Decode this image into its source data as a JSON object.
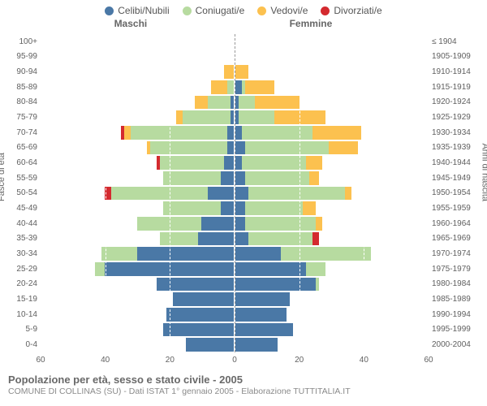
{
  "legend": {
    "items": [
      {
        "key": "celibi",
        "label": "Celibi/Nubili",
        "color": "#4a78a6"
      },
      {
        "key": "coniugati",
        "label": "Coniugati/e",
        "color": "#b7dba0"
      },
      {
        "key": "vedovi",
        "label": "Vedovi/e",
        "color": "#fcc14f"
      },
      {
        "key": "divorz",
        "label": "Divorziati/e",
        "color": "#d42a2f"
      }
    ]
  },
  "titles": {
    "male": "Maschi",
    "female": "Femmine",
    "y_left": "Fasce di età",
    "y_right": "Anni di nascita"
  },
  "axis": {
    "max": 60,
    "ticks_male": [
      60,
      40,
      20,
      0
    ],
    "ticks_female": [
      20,
      40,
      60
    ]
  },
  "chart": {
    "type": "population-pyramid",
    "background_color": "#ffffff",
    "row_count": 21,
    "rows": [
      {
        "age": "100+",
        "birth": "≤ 1904",
        "m": {
          "c": 0,
          "k": 0,
          "v": 0,
          "d": 0
        },
        "f": {
          "c": 0,
          "k": 0,
          "v": 0,
          "d": 0
        }
      },
      {
        "age": "95-99",
        "birth": "1905-1909",
        "m": {
          "c": 0,
          "k": 0,
          "v": 0,
          "d": 0
        },
        "f": {
          "c": 0,
          "k": 0,
          "v": 0,
          "d": 0
        }
      },
      {
        "age": "90-94",
        "birth": "1910-1914",
        "m": {
          "c": 0,
          "k": 0,
          "v": 3,
          "d": 0
        },
        "f": {
          "c": 0,
          "k": 0,
          "v": 4,
          "d": 0
        }
      },
      {
        "age": "85-89",
        "birth": "1915-1919",
        "m": {
          "c": 0,
          "k": 2,
          "v": 5,
          "d": 0
        },
        "f": {
          "c": 2,
          "k": 1,
          "v": 9,
          "d": 0
        }
      },
      {
        "age": "80-84",
        "birth": "1920-1924",
        "m": {
          "c": 1,
          "k": 7,
          "v": 4,
          "d": 0
        },
        "f": {
          "c": 1,
          "k": 5,
          "v": 14,
          "d": 0
        }
      },
      {
        "age": "75-79",
        "birth": "1925-1929",
        "m": {
          "c": 1,
          "k": 15,
          "v": 2,
          "d": 0
        },
        "f": {
          "c": 1,
          "k": 11,
          "v": 16,
          "d": 0
        }
      },
      {
        "age": "70-74",
        "birth": "1930-1934",
        "m": {
          "c": 2,
          "k": 30,
          "v": 2,
          "d": 1
        },
        "f": {
          "c": 2,
          "k": 22,
          "v": 15,
          "d": 0
        }
      },
      {
        "age": "65-69",
        "birth": "1935-1939",
        "m": {
          "c": 2,
          "k": 24,
          "v": 1,
          "d": 0
        },
        "f": {
          "c": 3,
          "k": 26,
          "v": 9,
          "d": 0
        }
      },
      {
        "age": "60-64",
        "birth": "1940-1944",
        "m": {
          "c": 3,
          "k": 20,
          "v": 0,
          "d": 1
        },
        "f": {
          "c": 2,
          "k": 20,
          "v": 5,
          "d": 0
        }
      },
      {
        "age": "55-59",
        "birth": "1945-1949",
        "m": {
          "c": 4,
          "k": 18,
          "v": 0,
          "d": 0
        },
        "f": {
          "c": 3,
          "k": 20,
          "v": 3,
          "d": 0
        }
      },
      {
        "age": "50-54",
        "birth": "1950-1954",
        "m": {
          "c": 8,
          "k": 30,
          "v": 0,
          "d": 2
        },
        "f": {
          "c": 4,
          "k": 30,
          "v": 2,
          "d": 0
        }
      },
      {
        "age": "45-49",
        "birth": "1955-1959",
        "m": {
          "c": 4,
          "k": 18,
          "v": 0,
          "d": 0
        },
        "f": {
          "c": 3,
          "k": 18,
          "v": 4,
          "d": 0
        }
      },
      {
        "age": "40-44",
        "birth": "1960-1964",
        "m": {
          "c": 10,
          "k": 20,
          "v": 0,
          "d": 0
        },
        "f": {
          "c": 3,
          "k": 22,
          "v": 2,
          "d": 0
        }
      },
      {
        "age": "35-39",
        "birth": "1965-1969",
        "m": {
          "c": 11,
          "k": 12,
          "v": 0,
          "d": 0
        },
        "f": {
          "c": 4,
          "k": 20,
          "v": 0,
          "d": 2
        }
      },
      {
        "age": "30-34",
        "birth": "1970-1974",
        "m": {
          "c": 30,
          "k": 11,
          "v": 0,
          "d": 0
        },
        "f": {
          "c": 14,
          "k": 28,
          "v": 0,
          "d": 0
        }
      },
      {
        "age": "25-29",
        "birth": "1975-1979",
        "m": {
          "c": 40,
          "k": 3,
          "v": 0,
          "d": 0
        },
        "f": {
          "c": 22,
          "k": 6,
          "v": 0,
          "d": 0
        }
      },
      {
        "age": "20-24",
        "birth": "1980-1984",
        "m": {
          "c": 24,
          "k": 0,
          "v": 0,
          "d": 0
        },
        "f": {
          "c": 25,
          "k": 1,
          "v": 0,
          "d": 0
        }
      },
      {
        "age": "15-19",
        "birth": "1985-1989",
        "m": {
          "c": 19,
          "k": 0,
          "v": 0,
          "d": 0
        },
        "f": {
          "c": 17,
          "k": 0,
          "v": 0,
          "d": 0
        }
      },
      {
        "age": "10-14",
        "birth": "1990-1994",
        "m": {
          "c": 21,
          "k": 0,
          "v": 0,
          "d": 0
        },
        "f": {
          "c": 16,
          "k": 0,
          "v": 0,
          "d": 0
        }
      },
      {
        "age": "5-9",
        "birth": "1995-1999",
        "m": {
          "c": 22,
          "k": 0,
          "v": 0,
          "d": 0
        },
        "f": {
          "c": 18,
          "k": 0,
          "v": 0,
          "d": 0
        }
      },
      {
        "age": "0-4",
        "birth": "2000-2004",
        "m": {
          "c": 15,
          "k": 0,
          "v": 0,
          "d": 0
        },
        "f": {
          "c": 13,
          "k": 0,
          "v": 0,
          "d": 0
        }
      }
    ]
  },
  "footer": {
    "title": "Popolazione per età, sesso e stato civile - 2005",
    "sub": "COMUNE DI COLLINAS (SU) - Dati ISTAT 1° gennaio 2005 - Elaborazione TUTTITALIA.IT"
  }
}
